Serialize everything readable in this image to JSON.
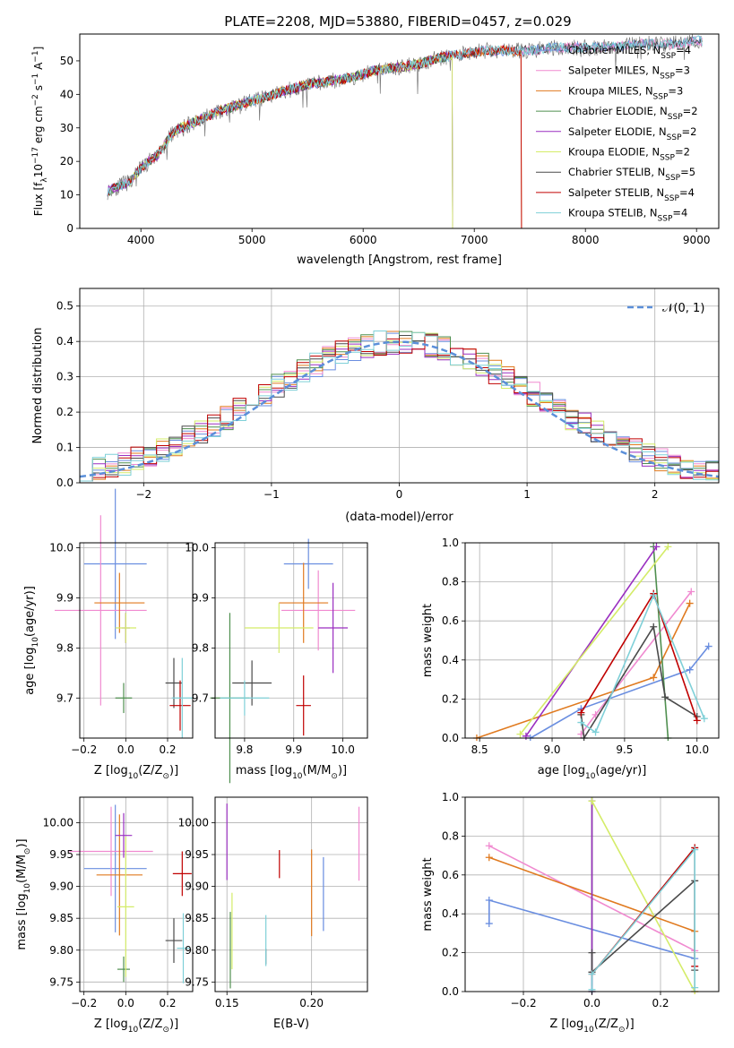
{
  "title": "PLATE=2208, MJD=53880, FIBERID=0457, z=0.029",
  "colors": [
    "#6a8ee0",
    "#f08ad0",
    "#e07a1f",
    "#4f8f4f",
    "#9a2fc0",
    "#d4ec68",
    "#4a4a4a",
    "#c00000",
    "#7fd0d8"
  ],
  "chart_data": [
    {
      "id": "spectrum",
      "type": "line",
      "xlabel": "wavelength [Angstrom, rest frame]",
      "ylabel_main": "Flux [f",
      "ylabel_lambda": "λ",
      "ylabel_rest": "10",
      "ylabel_exp": "−17",
      "ylabel_units": " erg cm",
      "ylabel_exp2": "−2",
      "ylabel_units2": " s",
      "ylabel_exp3": "−1",
      "ylabel_units3": " A",
      "ylabel_exp4": "−1",
      "ylabel_end": "]",
      "xlim": [
        3450,
        9200
      ],
      "ylim": [
        0,
        58
      ],
      "xticks": [
        4000,
        5000,
        6000,
        7000,
        8000,
        9000
      ],
      "yticks": [
        0,
        10,
        20,
        30,
        40,
        50
      ],
      "continuum": [
        [
          3700,
          11
        ],
        [
          3900,
          14
        ],
        [
          4000,
          18
        ],
        [
          4150,
          22
        ],
        [
          4300,
          29
        ],
        [
          4500,
          32
        ],
        [
          4700,
          35
        ],
        [
          4900,
          37
        ],
        [
          5100,
          39
        ],
        [
          5300,
          41
        ],
        [
          5500,
          43
        ],
        [
          5700,
          44
        ],
        [
          5900,
          45
        ],
        [
          6100,
          47
        ],
        [
          6300,
          48
        ],
        [
          6500,
          49
        ],
        [
          6700,
          51
        ],
        [
          6900,
          52
        ],
        [
          7100,
          53
        ],
        [
          7300,
          53
        ],
        [
          7500,
          53
        ],
        [
          7700,
          54
        ],
        [
          7900,
          54
        ],
        [
          8200,
          54
        ],
        [
          8500,
          55
        ],
        [
          8800,
          55
        ],
        [
          9000,
          56
        ]
      ],
      "legend": [
        {
          "name": "Chabrier MILES, N",
          "sub": "SSP",
          "suffix": "=4"
        },
        {
          "name": "Salpeter MILES, N",
          "sub": "SSP",
          "suffix": "=3"
        },
        {
          "name": "Kroupa MILES, N",
          "sub": "SSP",
          "suffix": "=3"
        },
        {
          "name": "Chabrier ELODIE, N",
          "sub": "SSP",
          "suffix": "=2"
        },
        {
          "name": "Salpeter ELODIE, N",
          "sub": "SSP",
          "suffix": "=2"
        },
        {
          "name": "Kroupa ELODIE, N",
          "sub": "SSP",
          "suffix": "=2"
        },
        {
          "name": "Chabrier STELIB, N",
          "sub": "SSP",
          "suffix": "=5"
        },
        {
          "name": "Salpeter STELIB, N",
          "sub": "SSP",
          "suffix": "=4"
        },
        {
          "name": "Kroupa STELIB, N",
          "sub": "SSP",
          "suffix": "=4"
        }
      ],
      "legend_position": "upper-right"
    },
    {
      "id": "residuals",
      "type": "step",
      "xlabel": "(data-model)/error",
      "ylabel": "Normed distribution",
      "xlim": [
        -2.5,
        2.5
      ],
      "ylim": [
        0,
        0.55
      ],
      "xticks": [
        -2,
        -1,
        0,
        1,
        2
      ],
      "yticks": [
        0.0,
        0.1,
        0.2,
        0.3,
        0.4,
        0.5
      ],
      "grid": true,
      "bin_width": 0.1,
      "reference_curve": "N(0,1)",
      "reference_label": "𝒩(0, 1)",
      "legend_position": "upper-right"
    },
    {
      "id": "age_vs_Z",
      "type": "errorbar",
      "xlabel": "Z [log",
      "xlabel_sub": "10",
      "xlabel_end": "(Z/Z",
      "xlabel_sun": "⊙",
      "xlabel_close": ")]",
      "ylabel": "age  [log",
      "ylabel_sub": "10",
      "ylabel_end": "(age/yr)]",
      "xlim": [
        -0.22,
        0.32
      ],
      "ylim": [
        9.62,
        10.01
      ],
      "xticks": [
        -0.2,
        0.0,
        0.2
      ],
      "yticks": [
        9.7,
        9.8,
        9.9,
        10.0
      ],
      "grid": true,
      "points": [
        {
          "x": -0.05,
          "y": 9.968,
          "xerr": 0.15,
          "yerr": 0.15
        },
        {
          "x": -0.12,
          "y": 9.875,
          "xerr": 0.22,
          "yerr": 0.19
        },
        {
          "x": -0.03,
          "y": 9.89,
          "xerr": 0.12,
          "yerr": 0.06
        },
        {
          "x": -0.01,
          "y": 9.7,
          "xerr": 0.04,
          "yerr": 0.03
        },
        {
          "x": 0.0,
          "y": 9.84,
          "xerr": 0.02,
          "yerr": 0.03
        },
        {
          "x": 0.0,
          "y": 9.84,
          "xerr": 0.05,
          "yerr": 0.03
        },
        {
          "x": 0.23,
          "y": 9.73,
          "xerr": 0.04,
          "yerr": 0.05
        },
        {
          "x": 0.26,
          "y": 9.685,
          "xerr": 0.05,
          "yerr": 0.05
        },
        {
          "x": 0.27,
          "y": 9.7,
          "xerr": 0.05,
          "yerr": 0.08
        }
      ]
    },
    {
      "id": "age_vs_mass",
      "type": "errorbar",
      "xlabel": "mass [log",
      "xlabel_sub": "10",
      "xlabel_end": "(M/M",
      "xlabel_sun": "⊙",
      "xlabel_close": ")]",
      "xlim": [
        9.74,
        10.05
      ],
      "ylim": [
        9.62,
        10.01
      ],
      "xticks": [
        9.8,
        9.9,
        10.0
      ],
      "yticks": [
        9.7,
        9.8,
        9.9,
        10.0
      ],
      "grid": true,
      "points": [
        {
          "x": 9.93,
          "y": 9.968,
          "xerr": 0.05,
          "yerr": 0.05
        },
        {
          "x": 9.95,
          "y": 9.875,
          "xerr": 0.075,
          "yerr": 0.08
        },
        {
          "x": 9.92,
          "y": 9.89,
          "xerr": 0.05,
          "yerr": 0.08
        },
        {
          "x": 9.77,
          "y": 9.7,
          "xerr": 0.04,
          "yerr": 0.17
        },
        {
          "x": 9.98,
          "y": 9.84,
          "xerr": 0.03,
          "yerr": 0.09
        },
        {
          "x": 9.87,
          "y": 9.84,
          "xerr": 0.07,
          "yerr": 0.05
        },
        {
          "x": 9.815,
          "y": 9.73,
          "xerr": 0.04,
          "yerr": 0.045
        },
        {
          "x": 9.92,
          "y": 9.685,
          "xerr": 0.015,
          "yerr": 0.06
        },
        {
          "x": 9.8,
          "y": 9.7,
          "xerr": 0.05,
          "yerr": 0.035
        }
      ]
    },
    {
      "id": "weight_vs_age",
      "type": "line",
      "xlabel": "age  [log",
      "xlabel_sub": "10",
      "xlabel_end": "(age/yr)]",
      "ylabel": "mass weight",
      "xlim": [
        8.4,
        10.15
      ],
      "ylim": [
        0,
        1.0
      ],
      "xticks": [
        8.5,
        9.0,
        9.5,
        10.0
      ],
      "yticks": [
        0.0,
        0.2,
        0.4,
        0.6,
        0.8,
        1.0
      ],
      "grid": true,
      "series": [
        {
          "points": [
            [
              8.85,
              0.0
            ],
            [
              9.2,
              0.15
            ],
            [
              9.95,
              0.35
            ],
            [
              10.08,
              0.47
            ]
          ]
        },
        {
          "points": [
            [
              9.2,
              0.02
            ],
            [
              9.3,
              0.12
            ],
            [
              9.96,
              0.75
            ]
          ]
        },
        {
          "points": [
            [
              8.48,
              0.0
            ],
            [
              9.7,
              0.31
            ],
            [
              9.95,
              0.69
            ]
          ]
        },
        {
          "points": [
            [
              9.7,
              0.98
            ],
            [
              9.8,
              0.0
            ]
          ]
        },
        {
          "points": [
            [
              8.82,
              0.01
            ],
            [
              9.72,
              0.98
            ]
          ]
        },
        {
          "points": [
            [
              8.78,
              0.02
            ],
            [
              9.8,
              0.98
            ]
          ]
        },
        {
          "points": [
            [
              9.2,
              0.12
            ],
            [
              9.22,
              0.0
            ],
            [
              9.7,
              0.57
            ],
            [
              9.78,
              0.21
            ],
            [
              10.0,
              0.11
            ]
          ]
        },
        {
          "points": [
            [
              9.2,
              0.13
            ],
            [
              9.7,
              0.74
            ],
            [
              10.0,
              0.09
            ]
          ]
        },
        {
          "points": [
            [
              9.2,
              0.08
            ],
            [
              9.3,
              0.03
            ],
            [
              9.7,
              0.73
            ],
            [
              10.05,
              0.1
            ]
          ]
        }
      ]
    },
    {
      "id": "mass_vs_Z",
      "type": "errorbar",
      "xlabel": "Z [log",
      "xlabel_sub": "10",
      "xlabel_end": "(Z/Z",
      "xlabel_sun": "⊙",
      "xlabel_close": ")]",
      "ylabel": "mass [log",
      "ylabel_sub": "10",
      "ylabel_end": "(M/M",
      "ylabel_sun": "⊙",
      "ylabel_close": ")]",
      "xlim": [
        -0.22,
        0.32
      ],
      "ylim": [
        9.735,
        10.04
      ],
      "xticks": [
        -0.2,
        0.0,
        0.2
      ],
      "yticks": [
        9.75,
        9.8,
        9.85,
        9.9,
        9.95,
        10.0
      ],
      "grid": true,
      "points": [
        {
          "x": -0.05,
          "y": 9.928,
          "xerr": 0.15,
          "yerr": 0.1
        },
        {
          "x": -0.07,
          "y": 9.955,
          "xerr": 0.2,
          "yerr": 0.07
        },
        {
          "x": -0.03,
          "y": 9.918,
          "xerr": 0.11,
          "yerr": 0.095
        },
        {
          "x": -0.01,
          "y": 9.77,
          "xerr": 0.03,
          "yerr": 0.02
        },
        {
          "x": -0.01,
          "y": 9.98,
          "xerr": 0.04,
          "yerr": 0.035
        },
        {
          "x": -0.0,
          "y": 9.868,
          "xerr": 0.04,
          "yerr": 0.11
        },
        {
          "x": 0.23,
          "y": 9.815,
          "xerr": 0.04,
          "yerr": 0.035
        },
        {
          "x": 0.27,
          "y": 9.92,
          "xerr": 0.045,
          "yerr": 0.035
        },
        {
          "x": 0.275,
          "y": 9.803,
          "xerr": 0.03,
          "yerr": 0.055
        }
      ]
    },
    {
      "id": "mass_vs_ebv",
      "type": "errorbar",
      "xlabel": "E(B-V)",
      "xlim": [
        0.143,
        0.233
      ],
      "ylim": [
        9.735,
        10.04
      ],
      "xticks": [
        0.15,
        0.2
      ],
      "yticks": [
        9.75,
        9.8,
        9.85,
        9.9,
        9.95,
        10.0
      ],
      "grid": true,
      "points": [
        {
          "x": 0.207,
          "y": 9.888,
          "yerr": 0.058
        },
        {
          "x": 0.228,
          "y": 9.967,
          "yerr": 0.058
        },
        {
          "x": 0.2,
          "y": 9.89,
          "yerr": 0.068
        },
        {
          "x": 0.152,
          "y": 9.8,
          "yerr": 0.06
        },
        {
          "x": 0.15,
          "y": 9.97,
          "yerr": 0.06
        },
        {
          "x": 0.153,
          "y": 9.83,
          "yerr": 0.06
        },
        {
          "x": 0.173,
          "y": 9.79,
          "yerr": 0.012
        },
        {
          "x": 0.181,
          "y": 9.935,
          "yerr": 0.022
        },
        {
          "x": 0.173,
          "y": 9.815,
          "yerr": 0.04
        }
      ]
    },
    {
      "id": "weight_vs_Z",
      "type": "line",
      "xlabel": "Z [log",
      "xlabel_sub": "10",
      "xlabel_end": "(Z/Z",
      "xlabel_sun": "⊙",
      "xlabel_close": ")]",
      "ylabel": "mass weight",
      "xlim": [
        -0.37,
        0.37
      ],
      "ylim": [
        0,
        1.0
      ],
      "xticks": [
        -0.2,
        0.0,
        0.2
      ],
      "yticks": [
        0.0,
        0.2,
        0.4,
        0.6,
        0.8,
        1.0
      ],
      "grid": true,
      "series": [
        {
          "points": [
            [
              -0.3,
              0.35
            ],
            [
              -0.3,
              0.47
            ],
            [
              0.3,
              0.17
            ]
          ]
        },
        {
          "points": [
            [
              -0.3,
              0.75
            ],
            [
              0.3,
              0.21
            ]
          ]
        },
        {
          "points": [
            [
              -0.3,
              0.69
            ],
            [
              0.3,
              0.31
            ],
            [
              0.3,
              0.0
            ]
          ]
        },
        {
          "points": [
            [
              0.0,
              0.0
            ],
            [
              0.0,
              0.98
            ]
          ]
        },
        {
          "points": [
            [
              0.0,
              0.0
            ],
            [
              0.0,
              0.98
            ]
          ]
        },
        {
          "points": [
            [
              0.0,
              0.98
            ],
            [
              0.3,
              0.0
            ]
          ]
        },
        {
          "points": [
            [
              0.0,
              0.2
            ],
            [
              0.0,
              0.1
            ],
            [
              0.3,
              0.57
            ],
            [
              0.3,
              0.11
            ]
          ]
        },
        {
          "points": [
            [
              0.0,
              0.09
            ],
            [
              0.3,
              0.74
            ],
            [
              0.3,
              0.13
            ]
          ]
        },
        {
          "points": [
            [
              0.0,
              0.01
            ],
            [
              0.0,
              0.09
            ],
            [
              0.3,
              0.73
            ],
            [
              0.3,
              0.02
            ]
          ]
        }
      ]
    }
  ]
}
